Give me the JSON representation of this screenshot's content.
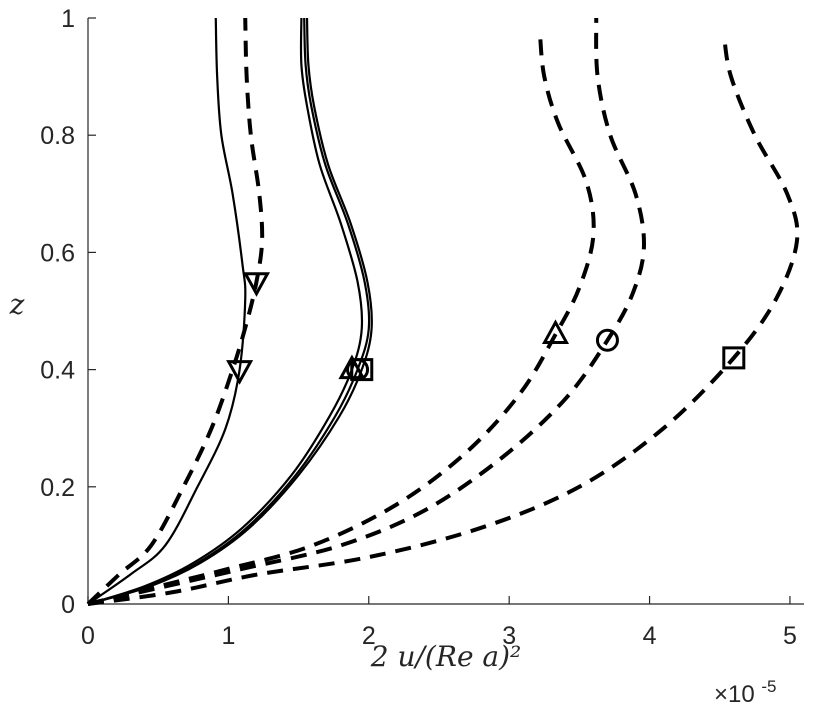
{
  "chart_data": {
    "type": "line",
    "title": "",
    "xlabel": "2 u/(Re a)²",
    "ylabel": "z",
    "x_exponent_label": "×10",
    "x_exponent_power": "-5",
    "xlim": [
      0,
      5.1
    ],
    "ylim": [
      0,
      1
    ],
    "xticks": [
      0,
      1,
      2,
      3,
      4,
      5
    ],
    "yticks": [
      0,
      0.2,
      0.4,
      0.6,
      0.8,
      1
    ],
    "xtick_labels": [
      "0",
      "1",
      "2",
      "3",
      "4",
      "5"
    ],
    "ytick_labels": [
      "0",
      "0.2",
      "0.4",
      "0.6",
      "0.8",
      "1"
    ],
    "grid": false,
    "series": [
      {
        "style": "solid",
        "width": 2.2,
        "marker": "triangle-down",
        "marker_index": 5,
        "points": [
          [
            0,
            0
          ],
          [
            0.3,
            0.05
          ],
          [
            0.55,
            0.1
          ],
          [
            0.78,
            0.2
          ],
          [
            0.98,
            0.3
          ],
          [
            1.08,
            0.4
          ],
          [
            1.12,
            0.52
          ],
          [
            1.1,
            0.58
          ],
          [
            1.03,
            0.7
          ],
          [
            0.95,
            0.8
          ],
          [
            0.92,
            0.9
          ],
          [
            0.91,
            1.0
          ]
        ]
      },
      {
        "style": "dashed",
        "width": 4,
        "marker": "triangle-down",
        "marker_index": 7,
        "points": [
          [
            0,
            0
          ],
          [
            0.22,
            0.05
          ],
          [
            0.45,
            0.1
          ],
          [
            0.68,
            0.2
          ],
          [
            0.88,
            0.3
          ],
          [
            1.03,
            0.4
          ],
          [
            1.13,
            0.48
          ],
          [
            1.2,
            0.55
          ],
          [
            1.24,
            0.62
          ],
          [
            1.22,
            0.7
          ],
          [
            1.16,
            0.8
          ],
          [
            1.13,
            0.9
          ],
          [
            1.12,
            1.0
          ]
        ]
      },
      {
        "style": "solid",
        "width": 2.2,
        "marker": "triangle-up",
        "marker_index": 6,
        "points": [
          [
            0,
            0
          ],
          [
            0.4,
            0.03
          ],
          [
            0.75,
            0.07
          ],
          [
            1.1,
            0.13
          ],
          [
            1.45,
            0.22
          ],
          [
            1.72,
            0.32
          ],
          [
            1.88,
            0.4
          ],
          [
            1.95,
            0.47
          ],
          [
            1.92,
            0.55
          ],
          [
            1.8,
            0.65
          ],
          [
            1.65,
            0.75
          ],
          [
            1.56,
            0.85
          ],
          [
            1.52,
            0.92
          ],
          [
            1.52,
            1.0
          ]
        ]
      },
      {
        "style": "solid",
        "width": 2.2,
        "marker": "circle",
        "marker_index": 6,
        "points": [
          [
            0,
            0
          ],
          [
            0.42,
            0.03
          ],
          [
            0.78,
            0.07
          ],
          [
            1.13,
            0.13
          ],
          [
            1.48,
            0.22
          ],
          [
            1.76,
            0.32
          ],
          [
            1.92,
            0.4
          ],
          [
            2.0,
            0.47
          ],
          [
            1.97,
            0.55
          ],
          [
            1.85,
            0.65
          ],
          [
            1.69,
            0.75
          ],
          [
            1.59,
            0.85
          ],
          [
            1.55,
            0.92
          ],
          [
            1.54,
            1.0
          ]
        ]
      },
      {
        "style": "solid",
        "width": 2.2,
        "marker": "square",
        "marker_index": 6,
        "points": [
          [
            0,
            0
          ],
          [
            0.44,
            0.03
          ],
          [
            0.8,
            0.07
          ],
          [
            1.15,
            0.13
          ],
          [
            1.5,
            0.22
          ],
          [
            1.79,
            0.32
          ],
          [
            1.95,
            0.4
          ],
          [
            2.02,
            0.47
          ],
          [
            1.99,
            0.55
          ],
          [
            1.87,
            0.65
          ],
          [
            1.71,
            0.75
          ],
          [
            1.61,
            0.85
          ],
          [
            1.57,
            0.92
          ],
          [
            1.56,
            1.0
          ]
        ]
      },
      {
        "style": "dashed",
        "width": 4,
        "marker": "triangle-up",
        "marker_index": 7,
        "points": [
          [
            0,
            0
          ],
          [
            0.5,
            0.03
          ],
          [
            1.0,
            0.06
          ],
          [
            1.6,
            0.1
          ],
          [
            2.2,
            0.17
          ],
          [
            2.7,
            0.26
          ],
          [
            3.08,
            0.36
          ],
          [
            3.33,
            0.46
          ],
          [
            3.5,
            0.54
          ],
          [
            3.6,
            0.63
          ],
          [
            3.55,
            0.72
          ],
          [
            3.35,
            0.82
          ],
          [
            3.25,
            0.9
          ],
          [
            3.22,
            0.97
          ]
        ]
      },
      {
        "style": "dashed",
        "width": 4,
        "marker": "circle",
        "marker_index": 7,
        "points": [
          [
            0,
            0
          ],
          [
            0.55,
            0.03
          ],
          [
            1.1,
            0.06
          ],
          [
            1.8,
            0.1
          ],
          [
            2.4,
            0.16
          ],
          [
            2.95,
            0.25
          ],
          [
            3.4,
            0.35
          ],
          [
            3.7,
            0.45
          ],
          [
            3.88,
            0.53
          ],
          [
            3.96,
            0.61
          ],
          [
            3.9,
            0.7
          ],
          [
            3.72,
            0.8
          ],
          [
            3.63,
            0.9
          ],
          [
            3.62,
            1.0
          ]
        ]
      },
      {
        "style": "dashed",
        "width": 4,
        "marker": "square",
        "marker_index": 7,
        "points": [
          [
            0,
            0
          ],
          [
            0.6,
            0.02
          ],
          [
            1.2,
            0.05
          ],
          [
            2.0,
            0.08
          ],
          [
            2.8,
            0.13
          ],
          [
            3.5,
            0.2
          ],
          [
            4.1,
            0.3
          ],
          [
            4.6,
            0.42
          ],
          [
            4.9,
            0.52
          ],
          [
            5.05,
            0.62
          ],
          [
            4.98,
            0.7
          ],
          [
            4.75,
            0.8
          ],
          [
            4.58,
            0.9
          ],
          [
            4.53,
            0.97
          ]
        ]
      }
    ]
  }
}
